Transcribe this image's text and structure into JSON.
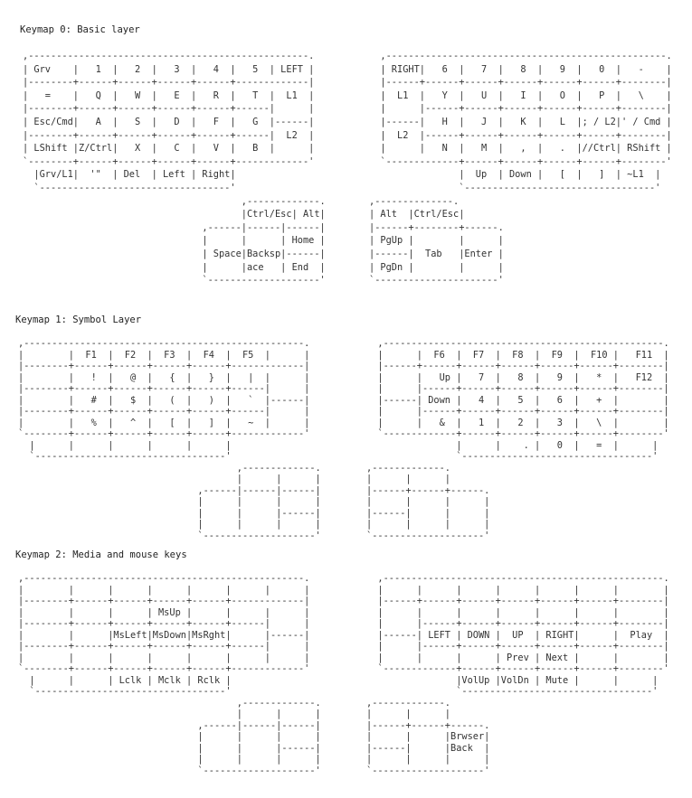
{
  "keymaps": [
    {
      "title": "Keymap 0: Basic layer",
      "left_lines": [
        ",--------------------------------------------------.",
        "| Grv    |   1  |   2  |   3  |   4  |   5  | LEFT |",
        "|--------+------+------+------+------+-------------|",
        "|   =    |   Q  |   W  |   E  |   R  |   T  |  L1  |",
        "|--------+------+------+------+------+------|      |",
        "| Esc/Cmd|   A  |   S  |   D  |   F  |   G  |------|",
        "|--------+------+------+------+------+------|  L2  |",
        "| LShift |Z/Ctrl|   X  |   C  |   V  |   B  |      |",
        "`--------+------+------+------+------+-------------'",
        "  |Grv/L1|  '\"  | Del  | Left | Right|",
        "  `----------------------------------'",
        "                                       ,-------------.",
        "                                       |Ctrl/Esc| Alt|",
        "                                ,------|------|------|",
        "                                |      |      | Home |",
        "                                | Space|Backsp|------|",
        "                                |      |ace   | End  |",
        "                                `--------------------'"
      ],
      "right_lines": [
        "  ,--------------------------------------------------.",
        "  | RIGHT|   6  |   7  |   8  |   9  |   0  |   -    |",
        "  |------+------+------+------+------+------+--------|",
        "  |  L1  |   Y  |   U  |   I  |   O  |   P  |   \\    |",
        "  |      |------+------+------+------+------+--------|",
        "  |------|   H  |   J  |   K  |   L  |; / L2|' / Cmd |",
        "  |  L2  |------+------+------+------+------+--------|",
        "  |      |   N  |   M  |   ,  |   .  |//Ctrl| RShift |",
        "  `-------------+------+------+------+------+--------'",
        "                |  Up  | Down |   [  |   ]  | ~L1  |",
        "                `----------------------------------'",
        ",--------------.",
        "| Alt  |Ctrl/Esc|",
        "|------+--------+------.",
        "| PgUp |        |      |",
        "|------|  Tab   |Enter |",
        "| PgDn |        |      |",
        "`----------------------'"
      ]
    },
    {
      "title": "Keymap 1: Symbol Layer",
      "left_lines": [
        ",--------------------------------------------------.",
        "|        |  F1  |  F2  |  F3  |  F4  |  F5  |      |",
        "|--------+------+------+------+------+-------------|",
        "|        |   !  |   @  |   {  |   }  |   |  |      |",
        "|--------+------+------+------+------+------|      |",
        "|        |   #  |   $  |   (  |   )  |   `  |------|",
        "|--------+------+------+------+------+------|      |",
        "|        |   %  |   ^  |   [  |   ]  |   ~  |      |",
        "`--------+------+------+------+------+-------------'",
        "  |      |      |      |      |      |",
        "  `----------------------------------'",
        "                                       ,-------------.",
        "                                       |      |      |",
        "                                ,------|------|------|",
        "                                |      |      |      |",
        "                                |      |      |------|",
        "                                |      |      |      |",
        "                                `--------------------'"
      ],
      "right_lines": [
        "  ,--------------------------------------------------.",
        "  |      |  F6  |  F7  |  F8  |  F9  |  F10 |   F11  |",
        "  |------+------+------+------+------+------+--------|",
        "  |      |   Up |   7  |   8  |   9  |   *  |   F12  |",
        "  |      |------+------+------+------+------+--------|",
        "  |------| Down |   4  |   5  |   6  |   +  |        |",
        "  |      |------+------+------+------+------+--------|",
        "  |      |   &  |   1  |   2  |   3  |   \\  |        |",
        "  `-------------+------+------+------+------+--------'",
        "                |      |    . |   0  |   =  |      |",
        "                `----------------------------------'",
        ",-------------.",
        "|      |      |",
        "|------+------+------.",
        "|      |      |      |",
        "|------|      |      |",
        "|      |      |      |",
        "`--------------------'"
      ]
    },
    {
      "title": "Keymap 2: Media and mouse keys",
      "left_lines": [
        ",--------------------------------------------------.",
        "|        |      |      |      |      |      |      |",
        "|--------+------+------+------+------+-------------|",
        "|        |      |      | MsUp |      |      |      |",
        "|--------+------+------+------+------+------|      |",
        "|        |      |MsLeft|MsDown|MsRght|      |------|",
        "|--------+------+------+------+------+------|      |",
        "|        |      |      |      |      |      |      |",
        "`--------+------+------+------+------+-------------'",
        "  |      |      | Lclk | Mclk | Rclk |",
        "  `----------------------------------'",
        "                                       ,-------------.",
        "                                       |      |      |",
        "                                ,------|------|------|",
        "                                |      |      |      |",
        "                                |      |      |------|",
        "                                |      |      |      |",
        "                                `--------------------'"
      ],
      "right_lines": [
        "  ,--------------------------------------------------.",
        "  |      |      |      |      |      |      |        |",
        "  |------+------+------+------+------+------+--------|",
        "  |      |      |      |      |      |      |        |",
        "  |      |------+------+------+------+------+--------|",
        "  |------| LEFT | DOWN |  UP  | RIGHT|      |  Play  |",
        "  |      |------+------+------+------+------+--------|",
        "  |      |      |      | Prev | Next |      |        |",
        "  `-------------+------+------+------+------+--------'",
        "                |VolUp |VolDn | Mute |      |      |",
        "                `----------------------------------'",
        ",-------------.",
        "|      |      |",
        "|------+------+------.",
        "|      |      |Brwser|",
        "|------|      |Back  |",
        "|      |      |      |",
        "`--------------------'"
      ]
    }
  ]
}
